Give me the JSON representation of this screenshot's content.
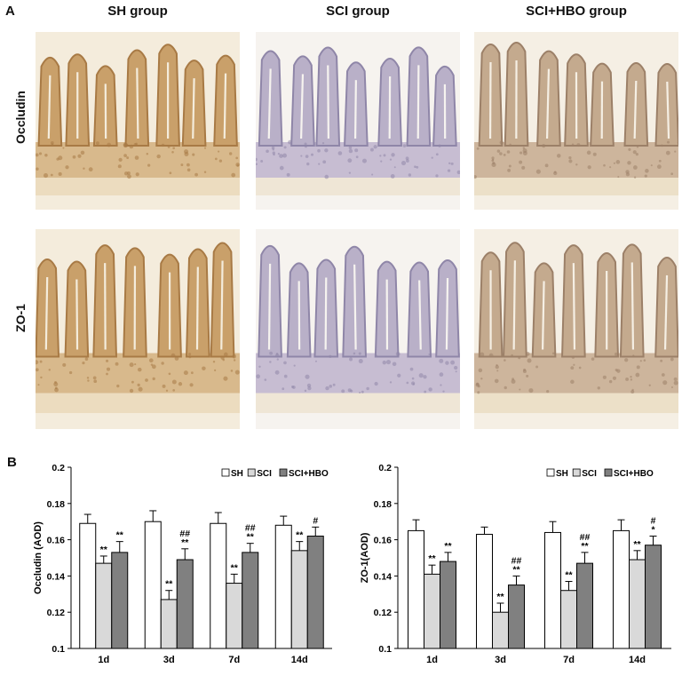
{
  "figure": {
    "panel_a_label": "A",
    "panel_b_label": "B",
    "groups": [
      "SH  group",
      "SCI  group",
      "SCI+HBO  group"
    ],
    "rows": [
      "Occludin",
      "ZO-1"
    ]
  },
  "chart_data": [
    {
      "type": "bar",
      "categories": [
        "1d",
        "3d",
        "7d",
        "14d"
      ],
      "ylabel": "Occludin (AOD)",
      "xlabel": "",
      "title": "",
      "ylim": [
        0.1,
        0.2
      ],
      "yticks": [
        "0.1",
        "0.12",
        "0.14",
        "0.16",
        "0.18",
        "0.2"
      ],
      "legend_position": "top-right",
      "series": [
        {
          "name": "SH",
          "values": [
            0.169,
            0.17,
            0.169,
            0.168
          ],
          "errors": [
            0.005,
            0.006,
            0.006,
            0.005
          ],
          "color": "#ffffff",
          "labels": [
            "",
            "",
            "",
            ""
          ]
        },
        {
          "name": "SCI",
          "values": [
            0.147,
            0.127,
            0.136,
            0.154
          ],
          "errors": [
            0.004,
            0.005,
            0.005,
            0.005
          ],
          "color": "#d9d9d9",
          "labels": [
            "**",
            "**",
            "**",
            "**"
          ]
        },
        {
          "name": "SCI+HBO",
          "values": [
            0.153,
            0.149,
            0.153,
            0.162
          ],
          "errors": [
            0.006,
            0.006,
            0.005,
            0.005
          ],
          "color": "#808080",
          "labels": [
            "**",
            "##|**",
            "##|**",
            "#"
          ]
        }
      ]
    },
    {
      "type": "bar",
      "categories": [
        "1d",
        "3d",
        "7d",
        "14d"
      ],
      "ylabel": "ZO-1(AOD)",
      "xlabel": "",
      "title": "",
      "ylim": [
        0.1,
        0.2
      ],
      "yticks": [
        "0.1",
        "0.12",
        "0.14",
        "0.16",
        "0.18",
        "0.2"
      ],
      "legend_position": "top-right",
      "series": [
        {
          "name": "SH",
          "values": [
            0.165,
            0.163,
            0.164,
            0.165
          ],
          "errors": [
            0.006,
            0.004,
            0.006,
            0.006
          ],
          "color": "#ffffff",
          "labels": [
            "",
            "",
            "",
            ""
          ]
        },
        {
          "name": "SCI",
          "values": [
            0.141,
            0.12,
            0.132,
            0.149
          ],
          "errors": [
            0.005,
            0.005,
            0.005,
            0.005
          ],
          "color": "#d9d9d9",
          "labels": [
            "**",
            "**",
            "**",
            "**"
          ]
        },
        {
          "name": "SCI+HBO",
          "values": [
            0.148,
            0.135,
            0.147,
            0.157
          ],
          "errors": [
            0.005,
            0.005,
            0.006,
            0.005
          ],
          "color": "#808080",
          "labels": [
            "**",
            "##|**",
            "##|**",
            "#|*"
          ]
        }
      ]
    }
  ]
}
